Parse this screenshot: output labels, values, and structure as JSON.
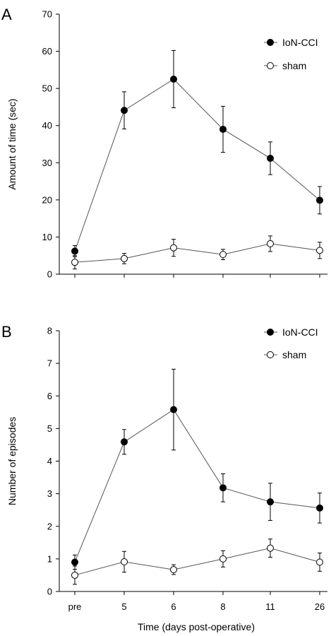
{
  "chart_data": [
    {
      "type": "line",
      "panel_label": "A",
      "ylabel": "Amount of time (sec)",
      "xlabel": "",
      "categories": [
        "pre",
        "5",
        "6",
        "8",
        "11",
        "26"
      ],
      "ylim": [
        0,
        70
      ],
      "yticks": [
        0,
        10,
        20,
        30,
        40,
        50,
        60,
        70
      ],
      "show_xtick_labels": false,
      "grid": false,
      "legend_position": "top-right",
      "series": [
        {
          "name": "IoN-CCI",
          "marker": "filled",
          "values": [
            6.2,
            44.1,
            52.5,
            39.0,
            31.2,
            19.9
          ],
          "errors": [
            1.5,
            5.0,
            7.7,
            6.2,
            4.4,
            3.7
          ]
        },
        {
          "name": "sham",
          "marker": "open",
          "values": [
            3.2,
            4.2,
            7.1,
            5.3,
            8.2,
            6.4
          ],
          "errors": [
            1.8,
            1.4,
            2.3,
            1.4,
            2.1,
            2.2
          ]
        }
      ]
    },
    {
      "type": "line",
      "panel_label": "B",
      "ylabel": "Number of episodes",
      "xlabel": "Time (days post-operative)",
      "categories": [
        "pre",
        "5",
        "6",
        "8",
        "11",
        "26"
      ],
      "ylim": [
        0,
        8
      ],
      "yticks": [
        0,
        1,
        2,
        3,
        4,
        5,
        6,
        7,
        8
      ],
      "show_xtick_labels": true,
      "grid": false,
      "legend_position": "top-right",
      "series": [
        {
          "name": "IoN-CCI",
          "marker": "filled",
          "values": [
            0.9,
            4.59,
            5.58,
            3.18,
            2.75,
            2.56
          ],
          "errors": [
            0.22,
            0.38,
            1.24,
            0.43,
            0.57,
            0.46
          ]
        },
        {
          "name": "sham",
          "marker": "open",
          "values": [
            0.5,
            0.91,
            0.67,
            1.0,
            1.33,
            0.9
          ],
          "errors": [
            0.28,
            0.32,
            0.15,
            0.25,
            0.28,
            0.28
          ]
        }
      ]
    }
  ]
}
